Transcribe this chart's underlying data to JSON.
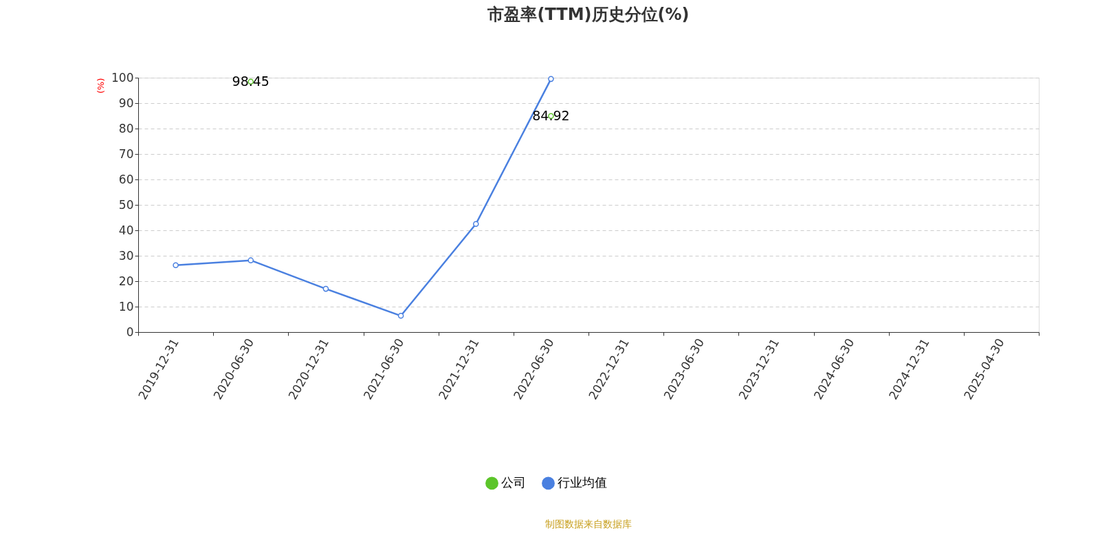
{
  "chart_data": {
    "type": "line",
    "title": "市盈率(TTM)历史分位(%)",
    "ylabel": "(%)",
    "categories": [
      "2019-12-31",
      "2020-06-30",
      "2020-12-31",
      "2021-06-30",
      "2021-12-31",
      "2022-06-30",
      "2022-12-31",
      "2023-06-30",
      "2023-12-31",
      "2024-06-30",
      "2024-12-31",
      "2025-04-30"
    ],
    "series": [
      {
        "name": "公司",
        "type": "scatter",
        "color": "#5cc52a",
        "values": [
          null,
          98.45,
          null,
          null,
          null,
          84.92,
          null,
          null,
          null,
          null,
          null,
          null
        ],
        "value_labels": [
          null,
          "98.45",
          null,
          null,
          null,
          "84.92",
          null,
          null,
          null,
          null,
          null,
          null
        ]
      },
      {
        "name": "行业均值",
        "color": "#4a80e0",
        "values": [
          26.3,
          28.2,
          17.0,
          6.4,
          42.5,
          99.5,
          null,
          null,
          null,
          null,
          null,
          null
        ]
      }
    ],
    "ylim": [
      0,
      100
    ],
    "yticks": [
      0,
      10,
      20,
      30,
      40,
      50,
      60,
      70,
      80,
      90,
      100
    ],
    "grid": "y",
    "legend": "bottom",
    "marker": "circle",
    "line_style": "solid",
    "annotations": [
      "制图数据来自数据库"
    ]
  }
}
